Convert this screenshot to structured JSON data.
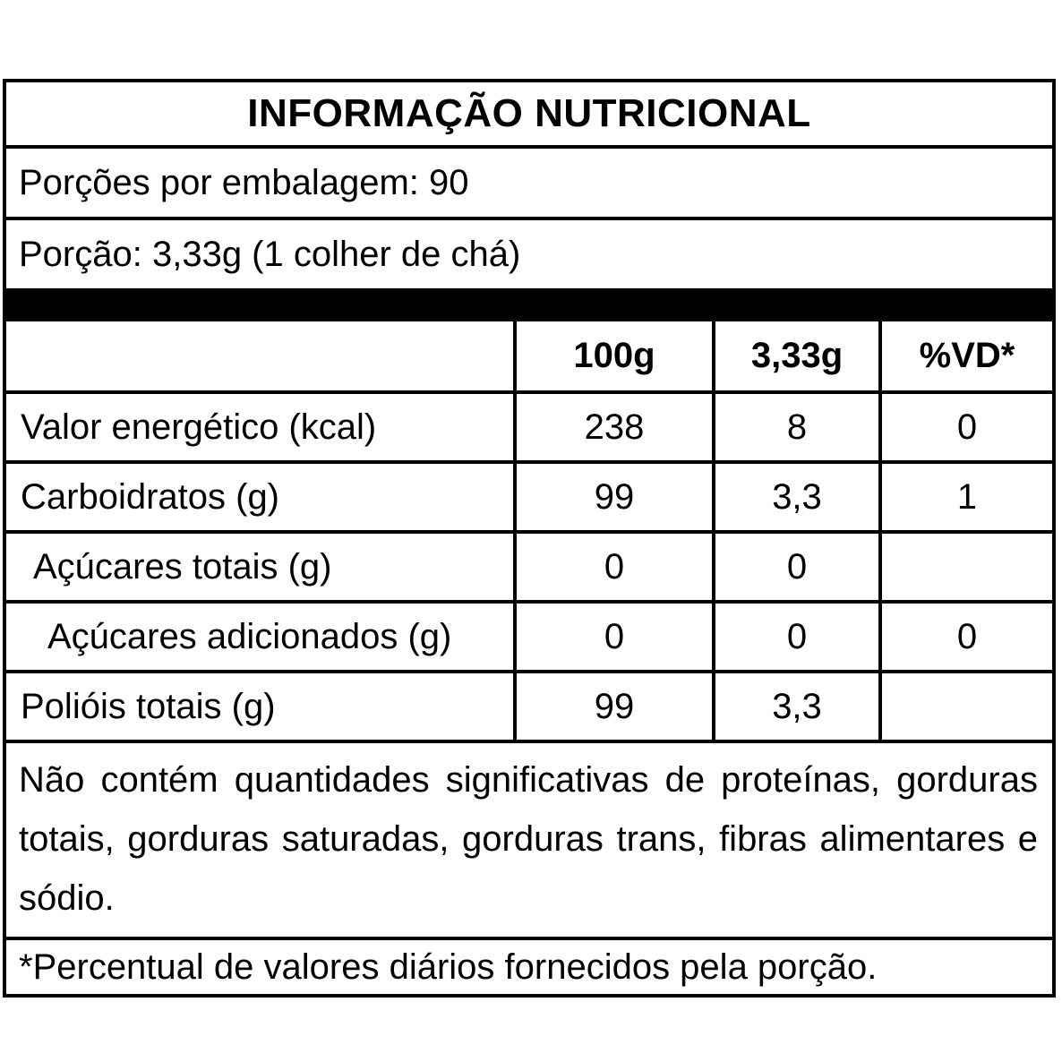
{
  "title": "INFORMAÇÃO NUTRICIONAL",
  "servings_line": "Porções por embalagem: 90",
  "portion_line": "Porção: 3,33g (1 colher de chá)",
  "columns": [
    "100g",
    "3,33g",
    "%VD*"
  ],
  "rows": [
    {
      "label": "Valor energético (kcal)",
      "per_100g": "238",
      "per_portion": "8",
      "vd": "0"
    },
    {
      "label": "Carboidratos (g)",
      "per_100g": "99",
      "per_portion": "3,3",
      "vd": "1"
    },
    {
      "label": "Açúcares totais (g)",
      "per_100g": "0",
      "per_portion": "0",
      "vd": ""
    },
    {
      "label": "Açúcares adicionados (g)",
      "per_100g": "0",
      "per_portion": "0",
      "vd": "0"
    },
    {
      "label": "Polióis totais (g)",
      "per_100g": "99",
      "per_portion": "3,3",
      "vd": ""
    }
  ],
  "footer_paragraph": "Não contém quantidades significativas de proteínas, gorduras totais, gorduras saturadas, gorduras trans, fibras alimentares e sódio.",
  "footnote": "*Percentual de valores diários fornecidos pela porção.",
  "colors": {
    "text": "#000000",
    "border": "#000000",
    "separator_bar": "#000000",
    "background": "#ffffff"
  }
}
